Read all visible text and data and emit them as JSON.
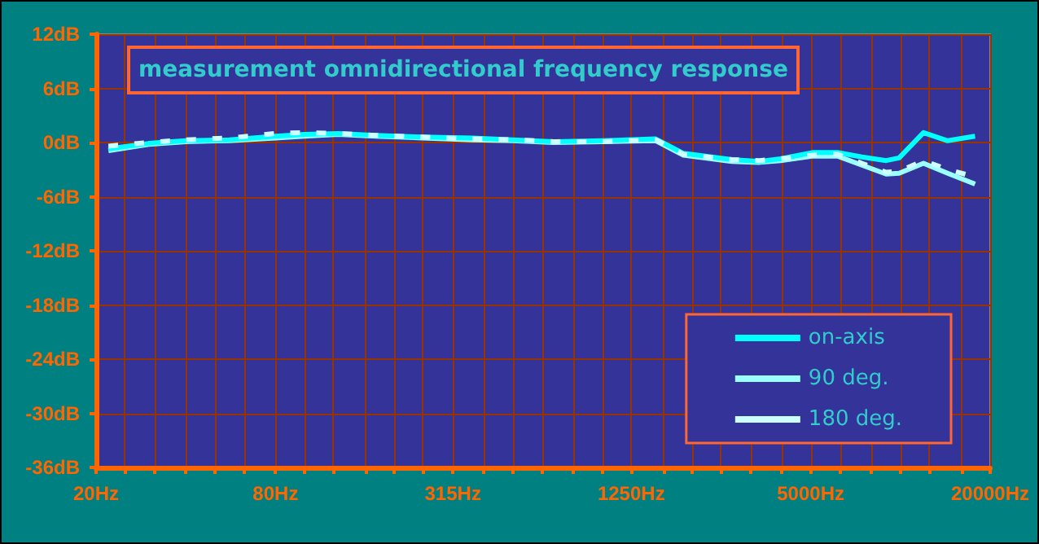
{
  "chart_data": {
    "type": "line",
    "title": "measurement omnidirectional frequency response",
    "series": [
      {
        "name": "on-axis",
        "color": "#00ffff",
        "line_style": "solid",
        "x": [
          22,
          30,
          40,
          56,
          80,
          100,
          130,
          173,
          250,
          366,
          500,
          686,
          1000,
          1510,
          1870,
          2720,
          3370,
          3960,
          5100,
          6150,
          7420,
          8960,
          9900,
          11950,
          14400,
          17800
        ],
        "values": [
          -0.7,
          -0.1,
          0.2,
          0.3,
          0.7,
          0.9,
          1.0,
          0.8,
          0.6,
          0.5,
          0.3,
          0.1,
          0.2,
          0.4,
          -1.2,
          -1.9,
          -2.1,
          -1.8,
          -1.1,
          -1.1,
          -1.6,
          -2.0,
          -1.7,
          1.1,
          0.2,
          0.7
        ]
      },
      {
        "name": "90 deg.",
        "color": "#99ffff",
        "line_style": "solid",
        "x": [
          22,
          30,
          40,
          56,
          80,
          100,
          130,
          173,
          250,
          366,
          500,
          686,
          1000,
          1510,
          1870,
          2720,
          3370,
          3960,
          5100,
          6150,
          7420,
          8960,
          9900,
          11950,
          14400,
          17800
        ],
        "values": [
          -0.9,
          -0.2,
          0.1,
          0.2,
          0.5,
          0.7,
          0.9,
          0.7,
          0.5,
          0.3,
          0.2,
          0.0,
          0.1,
          0.2,
          -1.4,
          -2.1,
          -2.2,
          -2.0,
          -1.5,
          -1.5,
          -2.5,
          -3.5,
          -3.4,
          -2.3,
          -3.4,
          -4.6
        ]
      },
      {
        "name": "180 deg.",
        "color": "#ccffff",
        "line_style": "dashed",
        "x": [
          22,
          30,
          40,
          56,
          80,
          100,
          130,
          173,
          250,
          366,
          500,
          686,
          1000,
          1510,
          1870,
          2720,
          3370,
          3960,
          5100,
          6150,
          7420,
          8960,
          9900,
          11950,
          14400,
          17800
        ],
        "values": [
          -0.4,
          0.0,
          0.3,
          0.5,
          1.0,
          1.1,
          1.0,
          0.8,
          0.6,
          0.4,
          0.3,
          0.1,
          0.1,
          0.3,
          -1.3,
          -1.9,
          -2.0,
          -1.8,
          -1.4,
          -1.3,
          -2.3,
          -3.3,
          -3.2,
          -2.0,
          -3.0,
          -3.8
        ]
      }
    ],
    "xlim": [
      20,
      20000
    ],
    "xticks": [
      {
        "value": 20,
        "label": "20Hz"
      },
      {
        "value": 25,
        "label": null
      },
      {
        "value": 31.5,
        "label": null
      },
      {
        "value": 40,
        "label": null
      },
      {
        "value": 50,
        "label": null
      },
      {
        "value": 63,
        "label": null
      },
      {
        "value": 80,
        "label": "80Hz"
      },
      {
        "value": 100,
        "label": null
      },
      {
        "value": 125,
        "label": null
      },
      {
        "value": 160,
        "label": null
      },
      {
        "value": 200,
        "label": null
      },
      {
        "value": 250,
        "label": null
      },
      {
        "value": 315,
        "label": "315Hz"
      },
      {
        "value": 400,
        "label": null
      },
      {
        "value": 500,
        "label": null
      },
      {
        "value": 630,
        "label": null
      },
      {
        "value": 800,
        "label": null
      },
      {
        "value": 1000,
        "label": null
      },
      {
        "value": 1250,
        "label": "1250Hz"
      },
      {
        "value": 1600,
        "label": null
      },
      {
        "value": 2000,
        "label": null
      },
      {
        "value": 2500,
        "label": null
      },
      {
        "value": 3150,
        "label": null
      },
      {
        "value": 4000,
        "label": null
      },
      {
        "value": 5000,
        "label": "5000Hz"
      },
      {
        "value": 6300,
        "label": null
      },
      {
        "value": 8000,
        "label": null
      },
      {
        "value": 10000,
        "label": null
      },
      {
        "value": 12500,
        "label": null
      },
      {
        "value": 16000,
        "label": null
      },
      {
        "value": 20000,
        "label": "20000Hz"
      }
    ],
    "ylim": [
      -36,
      12
    ],
    "yticks": [
      {
        "value": -36,
        "label": "-36dB"
      },
      {
        "value": -30,
        "label": "-30dB"
      },
      {
        "value": -24,
        "label": "-24dB"
      },
      {
        "value": -18,
        "label": "-18dB"
      },
      {
        "value": -12,
        "label": "-12dB"
      },
      {
        "value": -6,
        "label": "-6dB"
      },
      {
        "value": 0,
        "label": "0dB"
      },
      {
        "value": 6,
        "label": "6dB"
      },
      {
        "value": 12,
        "label": "12dB"
      }
    ],
    "log": "x",
    "grid": true,
    "legend": "bottom right",
    "marker": "none"
  }
}
